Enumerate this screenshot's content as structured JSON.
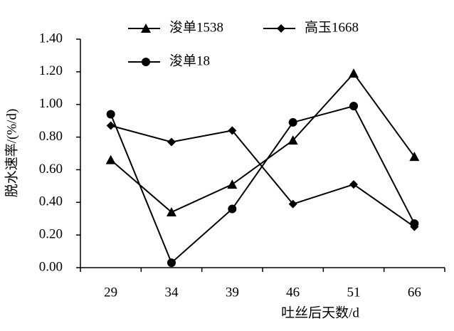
{
  "chart_data": {
    "type": "line",
    "x_label": "吐丝后天数/d",
    "y_label": "脱水速率/(%/d)",
    "categories": [
      "29",
      "34",
      "39",
      "46",
      "51",
      "66"
    ],
    "series": [
      {
        "name": "浚单1538",
        "color": "#000000",
        "marker": "triangle",
        "values": [
          0.66,
          0.34,
          0.51,
          0.78,
          1.19,
          0.68
        ]
      },
      {
        "name": "高玉1668",
        "color": "#000000",
        "marker": "diamond",
        "values": [
          0.87,
          0.77,
          0.84,
          0.39,
          0.51,
          0.25
        ]
      },
      {
        "name": "浚单18",
        "color": "#000000",
        "marker": "circle",
        "values": [
          0.94,
          0.03,
          0.36,
          0.89,
          0.99,
          0.27
        ]
      }
    ],
    "ylim": [
      0,
      1.4
    ],
    "yticks": [
      {
        "value": 0,
        "label": "0.00"
      },
      {
        "value": 0.2,
        "label": "0.20"
      },
      {
        "value": 0.4,
        "label": "0.40"
      },
      {
        "value": 0.6,
        "label": "0.60"
      },
      {
        "value": 0.8,
        "label": "0.80"
      },
      {
        "value": 1.0,
        "label": "1.00"
      },
      {
        "value": 1.2,
        "label": "1.20"
      },
      {
        "value": 1.4,
        "label": "1.40"
      }
    ],
    "grid": false
  }
}
